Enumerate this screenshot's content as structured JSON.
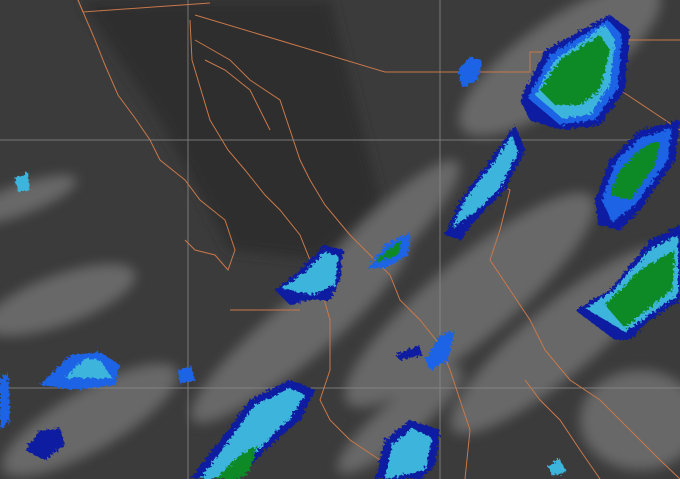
{
  "map": {
    "kind": "infrared-satellite-image",
    "colors": {
      "background": "#3b3b3b",
      "cloud": "#9a9a9a",
      "border": "#c8784a",
      "gridline": "#8a8a8a",
      "level1": "#0a1aa0",
      "level2": "#1e64e6",
      "level3": "#3cb4dc",
      "level4": "#0a8a28"
    }
  }
}
